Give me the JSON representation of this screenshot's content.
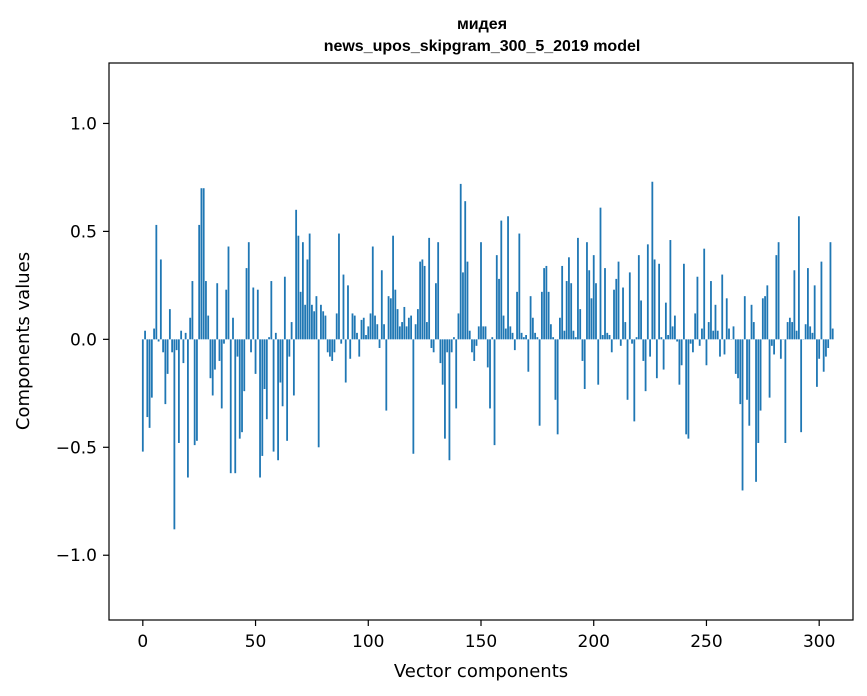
{
  "chart_data": {
    "type": "bar",
    "title": "мидея",
    "subtitle": "news_upos_skipgram_300_5_2019 model",
    "xlabel": "Vector components",
    "ylabel": "Components values",
    "xlim": [
      -15,
      315
    ],
    "ylim": [
      -1.3,
      1.28
    ],
    "xticks": [
      0,
      50,
      100,
      150,
      200,
      250,
      300
    ],
    "xtick_labels": [
      "0",
      "50",
      "100",
      "150",
      "200",
      "250",
      "300"
    ],
    "yticks": [
      -1.0,
      -0.5,
      0.0,
      0.5,
      1.0
    ],
    "ytick_labels": [
      "−1.0",
      "−0.5",
      "0.0",
      "0.5",
      "1.0"
    ],
    "bar_color": "#1f77b4",
    "values": [
      -0.52,
      0.04,
      -0.36,
      -0.41,
      -0.27,
      0.05,
      0.53,
      -0.01,
      0.37,
      -0.06,
      -0.3,
      -0.16,
      0.14,
      -0.06,
      -0.88,
      -0.05,
      -0.48,
      0.04,
      -0.11,
      0.03,
      -0.64,
      0.1,
      0.27,
      -0.49,
      -0.47,
      0.53,
      0.7,
      0.7,
      0.27,
      0.11,
      -0.18,
      -0.26,
      -0.14,
      0.26,
      -0.1,
      -0.32,
      -0.02,
      0.23,
      0.43,
      -0.62,
      0.1,
      -0.62,
      -0.08,
      -0.46,
      -0.43,
      -0.24,
      0.33,
      0.45,
      -0.06,
      0.24,
      -0.16,
      0.23,
      -0.64,
      -0.54,
      -0.23,
      -0.37,
      0.01,
      0.27,
      -0.52,
      0.03,
      -0.56,
      -0.2,
      -0.31,
      0.29,
      -0.47,
      -0.08,
      0.08,
      -0.26,
      0.6,
      0.48,
      0.22,
      0.45,
      0.16,
      0.37,
      0.49,
      0.16,
      0.13,
      0.2,
      -0.5,
      0.16,
      0.13,
      0.11,
      -0.06,
      -0.08,
      -0.1,
      -0.06,
      0.12,
      0.49,
      -0.02,
      0.3,
      -0.2,
      0.25,
      -0.09,
      0.12,
      0.11,
      0.03,
      -0.08,
      0.09,
      0.1,
      0.02,
      0.06,
      0.12,
      0.43,
      0.11,
      0.07,
      -0.04,
      0.32,
      0.07,
      -0.33,
      0.2,
      0.19,
      0.48,
      0.23,
      0.14,
      0.06,
      0.08,
      0.15,
      0.06,
      0.1,
      0.11,
      -0.53,
      0.07,
      0.14,
      0.36,
      0.37,
      0.34,
      0.08,
      0.47,
      -0.04,
      -0.06,
      0.26,
      0.45,
      -0.11,
      -0.21,
      -0.46,
      -0.06,
      -0.56,
      -0.06,
      0.01,
      -0.32,
      0.12,
      0.72,
      0.31,
      0.64,
      0.36,
      0.04,
      -0.06,
      -0.1,
      -0.03,
      0.06,
      0.45,
      0.06,
      0.06,
      -0.13,
      -0.32,
      0.01,
      -0.49,
      0.39,
      0.28,
      0.55,
      0.11,
      0.05,
      0.57,
      0.06,
      0.03,
      -0.05,
      0.22,
      0.49,
      0.03,
      0.01,
      0.02,
      -0.15,
      0.2,
      0.1,
      0.03,
      0.01,
      -0.4,
      0.22,
      0.33,
      0.34,
      0.22,
      0.07,
      0.01,
      -0.28,
      -0.44,
      0.1,
      0.34,
      0.04,
      0.27,
      0.38,
      0.26,
      0.04,
      0.01,
      0.47,
      0.14,
      -0.1,
      -0.23,
      0.45,
      0.32,
      0.19,
      0.39,
      0.26,
      -0.21,
      0.61,
      0.02,
      0.33,
      0.03,
      0.02,
      -0.06,
      0.23,
      0.28,
      0.36,
      -0.03,
      0.24,
      0.08,
      -0.28,
      0.31,
      -0.02,
      -0.38,
      0.01,
      0.39,
      0.18,
      -0.1,
      -0.24,
      0.44,
      -0.08,
      0.73,
      0.37,
      -0.18,
      0.35,
      0.01,
      -0.14,
      0.17,
      0.02,
      0.46,
      0.06,
      0.11,
      -0.01,
      -0.21,
      -0.12,
      0.35,
      -0.44,
      -0.46,
      -0.02,
      -0.06,
      0.12,
      0.29,
      -0.03,
      0.05,
      0.42,
      -0.12,
      0.08,
      0.27,
      0.04,
      0.16,
      0.04,
      -0.08,
      0.3,
      -0.07,
      0.19,
      0.05,
      0.0,
      0.06,
      -0.16,
      -0.18,
      -0.3,
      -0.7,
      0.2,
      -0.28,
      -0.4,
      0.16,
      0.08,
      -0.66,
      -0.48,
      -0.33,
      0.19,
      0.2,
      0.25,
      -0.27,
      -0.03,
      -0.07,
      0.39,
      0.45,
      -0.09,
      0.0,
      -0.48,
      0.08,
      0.1,
      0.08,
      0.32,
      0.04,
      0.57,
      -0.43,
      0.0,
      0.07,
      0.33,
      0.06,
      0.03,
      0.25,
      -0.22,
      -0.09,
      0.36,
      -0.15,
      -0.08,
      -0.04,
      0.45,
      0.05
    ]
  }
}
